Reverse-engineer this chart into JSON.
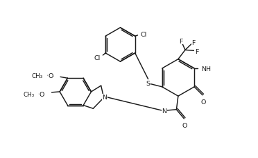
{
  "bg": "#ffffff",
  "lc": "#1a1a1a",
  "lw": 1.05,
  "fs": 6.8,
  "xlim": [
    -1.0,
    9.5
  ],
  "ylim": [
    -0.5,
    6.8
  ]
}
